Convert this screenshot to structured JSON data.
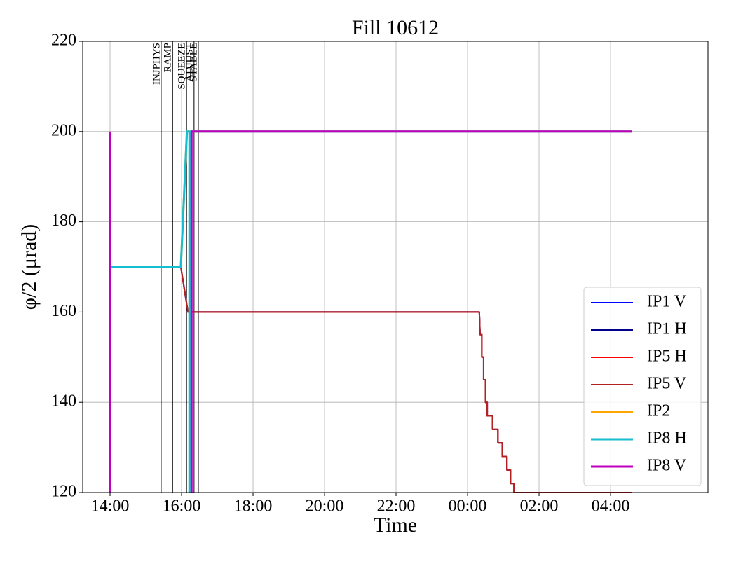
{
  "chart_data": {
    "type": "line",
    "title": "Fill 10612",
    "x_label": "Time",
    "y_label": "φ/2 (μrad)",
    "xlim": [
      13.235,
      30.725
    ],
    "ylim": [
      120,
      220
    ],
    "xticks": [
      {
        "value": 14,
        "label": "14:00"
      },
      {
        "value": 16,
        "label": "16:00"
      },
      {
        "value": 18,
        "label": "18:00"
      },
      {
        "value": 20,
        "label": "20:00"
      },
      {
        "value": 22,
        "label": "22:00"
      },
      {
        "value": 24,
        "label": "00:00"
      },
      {
        "value": 26,
        "label": "02:00"
      },
      {
        "value": 28,
        "label": "04:00"
      }
    ],
    "yticks": [
      120,
      140,
      160,
      180,
      200,
      220
    ],
    "grid": true,
    "legend": "lower right",
    "vlines": [
      {
        "x": 15.43,
        "label": "INJPHYS"
      },
      {
        "x": 15.75,
        "label": "RAMP"
      },
      {
        "x": 16.14,
        "label": "SQUEEZE"
      },
      {
        "x": 16.35,
        "label": "ADJUST"
      },
      {
        "x": 16.47,
        "label": "STABLE"
      }
    ],
    "series": [
      {
        "name": "IP1 V",
        "color": "#0000ff",
        "width": 2,
        "x": [
          14,
          15.98,
          16.18,
          24.33,
          24.35,
          24.4,
          24.4,
          24.45,
          24.45,
          24.5,
          24.5,
          24.55,
          24.55,
          24.7,
          24.7,
          24.85,
          24.85,
          24.97,
          24.97,
          25.1,
          25.1,
          25.2,
          25.2,
          25.3,
          25.3,
          28.6
        ],
        "values": [
          170,
          170,
          160,
          160,
          155,
          155,
          150,
          150,
          145,
          145,
          140,
          140,
          137,
          137,
          134,
          134,
          131,
          131,
          128,
          128,
          125,
          125,
          122,
          122,
          120,
          120
        ]
      },
      {
        "name": "IP1 H",
        "color": "#00008b",
        "width": 2,
        "x": [
          14,
          15.98,
          16.18,
          24.33,
          24.35,
          24.4,
          24.4,
          24.45,
          24.45,
          24.5,
          24.5,
          24.55,
          24.55,
          24.7,
          24.7,
          24.85,
          24.85,
          24.97,
          24.97,
          25.1,
          25.1,
          25.2,
          25.2,
          25.3,
          25.3,
          28.6
        ],
        "values": [
          170,
          170,
          160,
          160,
          155,
          155,
          150,
          150,
          145,
          145,
          140,
          140,
          137,
          137,
          134,
          134,
          131,
          131,
          128,
          128,
          125,
          125,
          122,
          122,
          120,
          120
        ]
      },
      {
        "name": "IP5 H",
        "color": "#ff0000",
        "width": 2,
        "x": [
          14,
          15.98,
          16.18,
          24.33,
          24.35,
          24.4,
          24.4,
          24.45,
          24.45,
          24.5,
          24.5,
          24.55,
          24.55,
          24.7,
          24.7,
          24.85,
          24.85,
          24.97,
          24.97,
          25.1,
          25.1,
          25.2,
          25.2,
          25.3,
          25.3,
          28.6
        ],
        "values": [
          170,
          170,
          160,
          160,
          155,
          155,
          150,
          150,
          145,
          145,
          140,
          140,
          137,
          137,
          134,
          134,
          131,
          131,
          128,
          128,
          125,
          125,
          122,
          122,
          120,
          120
        ]
      },
      {
        "name": "IP5 V",
        "color": "#b22222",
        "width": 2,
        "x": [
          14,
          15.98,
          16.18,
          24.33,
          24.35,
          24.4,
          24.4,
          24.45,
          24.45,
          24.5,
          24.5,
          24.55,
          24.55,
          24.7,
          24.7,
          24.85,
          24.85,
          24.97,
          24.97,
          25.1,
          25.1,
          25.2,
          25.2,
          25.3,
          25.3,
          28.6
        ],
        "values": [
          170,
          170,
          160,
          160,
          155,
          155,
          150,
          150,
          145,
          145,
          140,
          140,
          137,
          137,
          134,
          134,
          131,
          131,
          128,
          128,
          125,
          125,
          122,
          122,
          120,
          120
        ]
      },
      {
        "name": "IP2",
        "color": "#ffa500",
        "width": 3,
        "x": [
          14,
          15.98,
          16.15,
          16.28,
          28.6
        ],
        "values": [
          170,
          170,
          200,
          200,
          200
        ]
      },
      {
        "name": "IP8 H",
        "color": "#17becf",
        "width": 3,
        "x": [
          14,
          15.98,
          16.15,
          16.22,
          16.22,
          16.25,
          28.6
        ],
        "values": [
          170,
          170,
          200,
          200,
          110,
          200,
          200
        ]
      },
      {
        "name": "IP8 V",
        "color": "#bf00bf",
        "width": 3,
        "x": [
          14,
          14,
          14.01,
          16.28,
          16.28,
          16.3,
          28.6
        ],
        "values": [
          110,
          200,
          null,
          110,
          200,
          200,
          200
        ]
      }
    ]
  }
}
